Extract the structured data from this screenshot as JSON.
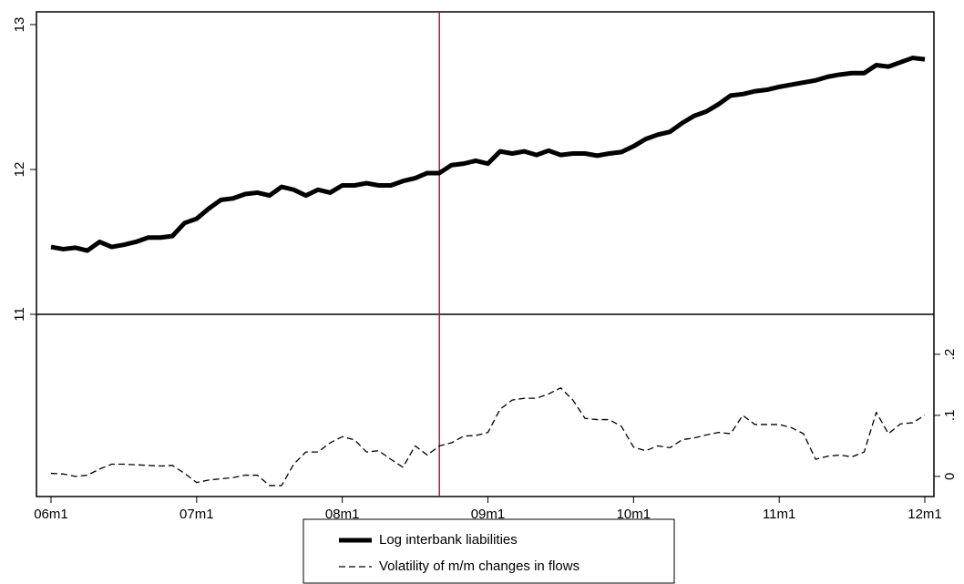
{
  "chart_data": {
    "type": "line",
    "x": [
      0,
      1,
      2,
      3,
      4,
      5,
      6,
      7,
      8,
      9,
      10,
      11,
      12,
      13,
      14,
      15,
      16,
      17,
      18,
      19,
      20,
      21,
      22,
      23,
      24,
      25,
      26,
      27,
      28,
      29,
      30,
      31,
      32,
      33,
      34,
      35,
      36,
      37,
      38,
      39,
      40,
      41,
      42,
      43,
      44,
      45,
      46,
      47,
      48,
      49,
      50,
      51,
      52,
      53,
      54,
      55,
      56,
      57,
      58,
      59,
      60,
      61,
      62,
      63,
      64,
      65,
      66,
      67,
      68,
      69,
      70,
      71,
      72
    ],
    "xlim": [
      -1.2,
      72.75
    ],
    "xticks": [
      {
        "value": 0,
        "label": "06m1"
      },
      {
        "value": 12,
        "label": "07m1"
      },
      {
        "value": 24,
        "label": "08m1"
      },
      {
        "value": 36,
        "label": "09m1"
      },
      {
        "value": 48,
        "label": "10m1"
      },
      {
        "value": 60,
        "label": "11m1"
      },
      {
        "value": 72,
        "label": "12m1"
      }
    ],
    "ylim": [
      9.742,
      13.088
    ],
    "yticks": [
      11,
      12,
      13
    ],
    "y2lim": [
      -0.033,
      0.761
    ],
    "y2ticks": [
      0,
      {
        "value": 0.1,
        "label": ".1"
      },
      {
        "value": 0.2,
        "label": ".2"
      }
    ],
    "hline": 11,
    "vline": {
      "value": 32,
      "color": "#c8102e"
    },
    "series": [
      {
        "name": "Log interbank liabilities",
        "color": "#000000",
        "dash": false,
        "values": [
          11.465,
          11.45,
          11.46,
          11.44,
          11.5,
          11.465,
          11.48,
          11.5,
          11.53,
          11.53,
          11.54,
          11.63,
          11.66,
          11.73,
          11.79,
          11.8,
          11.83,
          11.84,
          11.82,
          11.88,
          11.86,
          11.82,
          11.86,
          11.84,
          11.89,
          11.89,
          11.905,
          11.89,
          11.89,
          11.92,
          11.94,
          11.975,
          11.975,
          12.03,
          12.04,
          12.06,
          12.04,
          12.125,
          12.11,
          12.125,
          12.1,
          12.13,
          12.1,
          12.11,
          12.11,
          12.095,
          12.11,
          12.12,
          12.16,
          12.21,
          12.24,
          12.26,
          12.32,
          12.37,
          12.4,
          12.45,
          12.51,
          12.52,
          12.54,
          12.55,
          12.57,
          12.585,
          12.6,
          12.615,
          12.64,
          12.655,
          12.665,
          12.665,
          12.72,
          12.71,
          12.74,
          12.77,
          12.76
        ]
      },
      {
        "name": "Volatility of m/m changes in flows",
        "color": "#000000",
        "dash": true,
        "axis": "y2",
        "values": [
          0.005,
          0.004,
          0.0,
          0.002,
          0.012,
          0.02,
          0.02,
          0.019,
          0.018,
          0.017,
          0.018,
          0.005,
          -0.01,
          -0.006,
          -0.004,
          -0.002,
          0.002,
          0.002,
          -0.015,
          -0.015,
          0.02,
          0.04,
          0.04,
          0.055,
          0.065,
          0.06,
          0.04,
          0.042,
          0.028,
          0.015,
          0.05,
          0.035,
          0.05,
          0.055,
          0.066,
          0.067,
          0.072,
          0.11,
          0.125,
          0.128,
          0.128,
          0.135,
          0.145,
          0.125,
          0.095,
          0.093,
          0.093,
          0.082,
          0.048,
          0.042,
          0.05,
          0.047,
          0.06,
          0.063,
          0.068,
          0.072,
          0.07,
          0.1,
          0.085,
          0.085,
          0.085,
          0.08,
          0.07,
          0.028,
          0.033,
          0.035,
          0.032,
          0.04,
          0.105,
          0.07,
          0.086,
          0.088,
          0.1
        ]
      }
    ]
  }
}
